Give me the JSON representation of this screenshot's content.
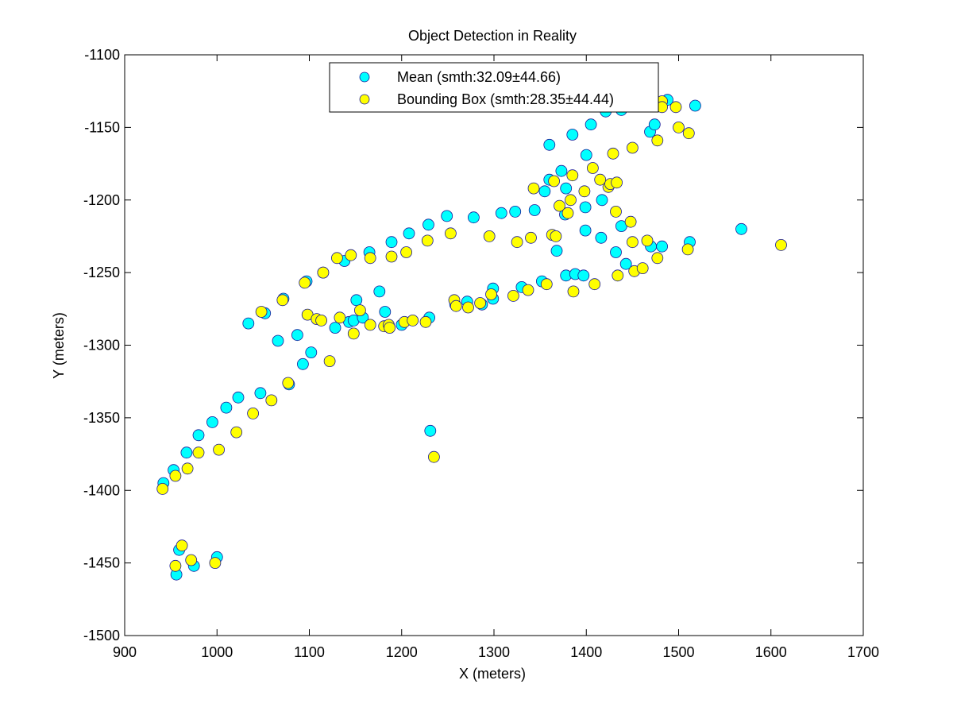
{
  "chart_data": {
    "type": "scatter",
    "title": "Object Detection in Reality",
    "xlabel": "X (meters)",
    "ylabel": "Y (meters)",
    "xlim": [
      900,
      1700
    ],
    "ylim": [
      -1500,
      -1100
    ],
    "xticks": [
      900,
      1000,
      1100,
      1200,
      1300,
      1400,
      1500,
      1600,
      1700
    ],
    "yticks": [
      -1100,
      -1150,
      -1200,
      -1250,
      -1300,
      -1350,
      -1400,
      -1450,
      -1500
    ],
    "grid": false,
    "legend_position": "top",
    "series": [
      {
        "name": "Mean (smth:32.09±44.66)",
        "color": "#00FFFF",
        "points": [
          [
            942,
            -1395
          ],
          [
            953,
            -1386
          ],
          [
            967,
            -1374
          ],
          [
            980,
            -1362
          ],
          [
            995,
            -1353
          ],
          [
            1010,
            -1343
          ],
          [
            1023,
            -1336
          ],
          [
            1034,
            -1285
          ],
          [
            1047,
            -1333
          ],
          [
            1052,
            -1278
          ],
          [
            1066,
            -1297
          ],
          [
            1072,
            -1268
          ],
          [
            1078,
            -1327
          ],
          [
            1087,
            -1293
          ],
          [
            1093,
            -1313
          ],
          [
            1097,
            -1256
          ],
          [
            1102,
            -1305
          ],
          [
            1115,
            -1250
          ],
          [
            1128,
            -1288
          ],
          [
            1138,
            -1242
          ],
          [
            1143,
            -1284
          ],
          [
            1148,
            -1283
          ],
          [
            1151,
            -1269
          ],
          [
            1158,
            -1281
          ],
          [
            1165,
            -1236
          ],
          [
            1176,
            -1263
          ],
          [
            1182,
            -1277
          ],
          [
            1189,
            -1229
          ],
          [
            1200,
            -1286
          ],
          [
            1208,
            -1223
          ],
          [
            1229,
            -1217
          ],
          [
            1230,
            -1281
          ],
          [
            1231,
            -1359
          ],
          [
            1249,
            -1211
          ],
          [
            1258,
            -1272
          ],
          [
            1271,
            -1270
          ],
          [
            1278,
            -1212
          ],
          [
            1287,
            -1272
          ],
          [
            1299,
            -1261
          ],
          [
            1299,
            -1268
          ],
          [
            1308,
            -1209
          ],
          [
            1323,
            -1208
          ],
          [
            1330,
            -1260
          ],
          [
            1344,
            -1207
          ],
          [
            1352,
            -1256
          ],
          [
            1355,
            -1194
          ],
          [
            1360,
            -1186
          ],
          [
            1360,
            -1162
          ],
          [
            1368,
            -1235
          ],
          [
            1373,
            -1180
          ],
          [
            1377,
            -1210
          ],
          [
            1378,
            -1192
          ],
          [
            1378,
            -1252
          ],
          [
            1385,
            -1155
          ],
          [
            1388,
            -1251
          ],
          [
            1397,
            -1252
          ],
          [
            1399,
            -1221
          ],
          [
            1399,
            -1205
          ],
          [
            1400,
            -1169
          ],
          [
            1405,
            -1148
          ],
          [
            1416,
            -1226
          ],
          [
            1417,
            -1200
          ],
          [
            1421,
            -1139
          ],
          [
            1432,
            -1236
          ],
          [
            1438,
            -1138
          ],
          [
            1438,
            -1218
          ],
          [
            1443,
            -1244
          ],
          [
            1469,
            -1153
          ],
          [
            1470,
            -1232
          ],
          [
            1474,
            -1148
          ],
          [
            1482,
            -1232
          ],
          [
            1488,
            -1131
          ],
          [
            1512,
            -1229
          ],
          [
            1518,
            -1135
          ],
          [
            1568,
            -1220
          ],
          [
            1000,
            -1446
          ],
          [
            959,
            -1441
          ],
          [
            956,
            -1458
          ],
          [
            975,
            -1452
          ]
        ]
      },
      {
        "name": "Bounding Box (smth:28.35±44.44)",
        "color": "#FFFF00",
        "points": [
          [
            941,
            -1399
          ],
          [
            955,
            -1390
          ],
          [
            968,
            -1385
          ],
          [
            980,
            -1374
          ],
          [
            1002,
            -1372
          ],
          [
            1021,
            -1360
          ],
          [
            1039,
            -1347
          ],
          [
            1059,
            -1338
          ],
          [
            1048,
            -1277
          ],
          [
            1071,
            -1269
          ],
          [
            1077,
            -1326
          ],
          [
            1095,
            -1257
          ],
          [
            1098,
            -1279
          ],
          [
            1108,
            -1282
          ],
          [
            1113,
            -1283
          ],
          [
            1115,
            -1250
          ],
          [
            1122,
            -1311
          ],
          [
            1130,
            -1240
          ],
          [
            1133,
            -1281
          ],
          [
            1145,
            -1238
          ],
          [
            1148,
            -1292
          ],
          [
            1155,
            -1276
          ],
          [
            1166,
            -1240
          ],
          [
            1166,
            -1286
          ],
          [
            1181,
            -1287
          ],
          [
            1186,
            -1286
          ],
          [
            1187,
            -1288
          ],
          [
            1189,
            -1239
          ],
          [
            1203,
            -1284
          ],
          [
            1205,
            -1236
          ],
          [
            1212,
            -1283
          ],
          [
            1226,
            -1284
          ],
          [
            1228,
            -1228
          ],
          [
            1235,
            -1377
          ],
          [
            1253,
            -1223
          ],
          [
            1257,
            -1269
          ],
          [
            1259,
            -1273
          ],
          [
            1272,
            -1274
          ],
          [
            1285,
            -1271
          ],
          [
            1295,
            -1225
          ],
          [
            1297,
            -1265
          ],
          [
            1321,
            -1266
          ],
          [
            1325,
            -1229
          ],
          [
            1337,
            -1262
          ],
          [
            1340,
            -1226
          ],
          [
            1343,
            -1192
          ],
          [
            1357,
            -1258
          ],
          [
            1363,
            -1224
          ],
          [
            1365,
            -1187
          ],
          [
            1367,
            -1225
          ],
          [
            1371,
            -1204
          ],
          [
            1380,
            -1209
          ],
          [
            1383,
            -1200
          ],
          [
            1385,
            -1183
          ],
          [
            1386,
            -1263
          ],
          [
            1398,
            -1194
          ],
          [
            1407,
            -1178
          ],
          [
            1409,
            -1258
          ],
          [
            1415,
            -1186
          ],
          [
            1424,
            -1191
          ],
          [
            1426,
            -1189
          ],
          [
            1429,
            -1168
          ],
          [
            1432,
            -1208
          ],
          [
            1433,
            -1188
          ],
          [
            1434,
            -1252
          ],
          [
            1448,
            -1215
          ],
          [
            1450,
            -1229
          ],
          [
            1450,
            -1164
          ],
          [
            1452,
            -1249
          ],
          [
            1461,
            -1247
          ],
          [
            1466,
            -1228
          ],
          [
            1477,
            -1240
          ],
          [
            1477,
            -1159
          ],
          [
            1482,
            -1132
          ],
          [
            1482,
            -1136
          ],
          [
            1497,
            -1136
          ],
          [
            1500,
            -1150
          ],
          [
            1510,
            -1234
          ],
          [
            1511,
            -1154
          ],
          [
            1611,
            -1231
          ],
          [
            998,
            -1450
          ],
          [
            962,
            -1438
          ],
          [
            955,
            -1452
          ],
          [
            972,
            -1448
          ]
        ]
      }
    ]
  }
}
